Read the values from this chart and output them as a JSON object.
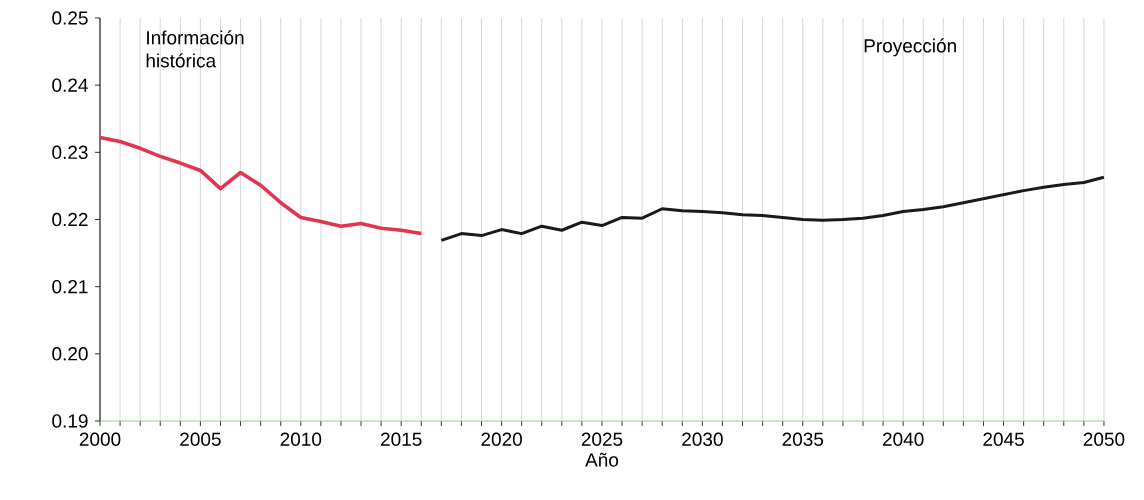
{
  "chart_data": {
    "type": "line",
    "xlabel": "Año",
    "annotations": [
      "Información histórica",
      "Proyección"
    ],
    "xlim": [
      2000,
      2050
    ],
    "xticks": [
      2000,
      {
        "value": 2001,
        "label": null
      },
      {
        "value": 2002,
        "label": null
      },
      {
        "value": 2003,
        "label": null
      },
      {
        "value": 2004,
        "label": null
      },
      2005,
      {
        "value": 2006,
        "label": null
      },
      {
        "value": 2007,
        "label": null
      },
      {
        "value": 2008,
        "label": null
      },
      {
        "value": 2009,
        "label": null
      },
      2010,
      {
        "value": 2011,
        "label": null
      },
      {
        "value": 2012,
        "label": null
      },
      {
        "value": 2013,
        "label": null
      },
      {
        "value": 2014,
        "label": null
      },
      2015,
      {
        "value": 2016,
        "label": null
      },
      {
        "value": 2017,
        "label": null
      },
      {
        "value": 2018,
        "label": null
      },
      {
        "value": 2019,
        "label": null
      },
      2020,
      {
        "value": 2021,
        "label": null
      },
      {
        "value": 2022,
        "label": null
      },
      {
        "value": 2023,
        "label": null
      },
      {
        "value": 2024,
        "label": null
      },
      2025,
      {
        "value": 2026,
        "label": null
      },
      {
        "value": 2027,
        "label": null
      },
      {
        "value": 2028,
        "label": null
      },
      {
        "value": 2029,
        "label": null
      },
      2030,
      {
        "value": 2031,
        "label": null
      },
      {
        "value": 2032,
        "label": null
      },
      {
        "value": 2033,
        "label": null
      },
      {
        "value": 2034,
        "label": null
      },
      2035,
      {
        "value": 2036,
        "label": null
      },
      {
        "value": 2037,
        "label": null
      },
      {
        "value": 2038,
        "label": null
      },
      {
        "value": 2039,
        "label": null
      },
      2040,
      {
        "value": 2041,
        "label": null
      },
      {
        "value": 2042,
        "label": null
      },
      {
        "value": 2043,
        "label": null
      },
      {
        "value": 2044,
        "label": null
      },
      2045,
      {
        "value": 2046,
        "label": null
      },
      {
        "value": 2047,
        "label": null
      },
      {
        "value": 2048,
        "label": null
      },
      {
        "value": 2049,
        "label": null
      },
      2050
    ],
    "ylim": [
      0.19,
      0.25
    ],
    "yticks": [
      {
        "value": 0.19,
        "label": "0.19"
      },
      {
        "value": 0.2,
        "label": "0.20"
      },
      {
        "value": 0.21,
        "label": "0.21"
      },
      {
        "value": 0.22,
        "label": "0.22"
      },
      {
        "value": 0.23,
        "label": "0.23"
      },
      {
        "value": 0.24,
        "label": "0.24"
      },
      {
        "value": 0.25,
        "label": "0.25"
      }
    ],
    "grid": "x",
    "marker": "none",
    "line_style": "solid",
    "series": [
      {
        "color": "#e0364f",
        "x": [
          2000,
          2001,
          2002,
          2003,
          2004,
          2005,
          2006,
          2007,
          2008,
          2009,
          2010,
          2011,
          2012,
          2013,
          2014,
          2015,
          2016
        ],
        "values": [
          0.2322,
          0.2316,
          0.2306,
          0.2294,
          0.2284,
          0.2273,
          0.2246,
          0.227,
          0.2251,
          0.2225,
          0.2203,
          0.2197,
          0.219,
          0.2194,
          0.2187,
          0.2184,
          0.2179
        ]
      },
      {
        "color": "#1a1a1a",
        "x": [
          2017,
          2018,
          2019,
          2020,
          2021,
          2022,
          2023,
          2024,
          2025,
          2026,
          2027,
          2028,
          2029,
          2030,
          2031,
          2032,
          2033,
          2034,
          2035,
          2036,
          2037,
          2038,
          2039,
          2040,
          2041,
          2042,
          2043,
          2044,
          2045,
          2046,
          2047,
          2048,
          2049,
          2050
        ],
        "values": [
          0.2169,
          0.2179,
          0.2176,
          0.2185,
          0.2179,
          0.219,
          0.2184,
          0.2196,
          0.2191,
          0.2203,
          0.2202,
          0.2216,
          0.2213,
          0.2212,
          0.221,
          0.2207,
          0.2206,
          0.2203,
          0.22,
          0.2199,
          0.22,
          0.2202,
          0.2206,
          0.2212,
          0.2215,
          0.2219,
          0.2225,
          0.2231,
          0.2237,
          0.2243,
          0.2248,
          0.2252,
          0.2255,
          0.2263
        ]
      }
    ]
  }
}
